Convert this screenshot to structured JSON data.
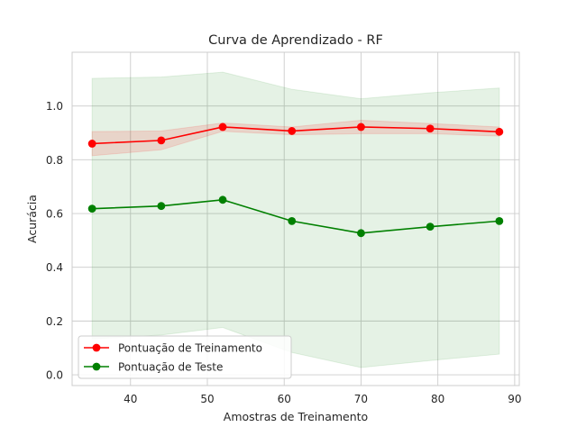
{
  "chart_data": {
    "type": "line",
    "title": "Curva de Aprendizado - RF",
    "xlabel": "Amostras de Treinamento",
    "ylabel": "Acurácia",
    "x": [
      35,
      44,
      52,
      61,
      70,
      79,
      88
    ],
    "xlim": [
      32.4,
      90.6
    ],
    "ylim": [
      -0.04,
      1.2
    ],
    "xticks": [
      40,
      50,
      60,
      70,
      80,
      90
    ],
    "yticks": [
      0.0,
      0.2,
      0.4,
      0.6,
      0.8,
      1.0
    ],
    "xtick_labels": [
      "40",
      "50",
      "60",
      "70",
      "80",
      "90"
    ],
    "ytick_labels": [
      "0.0",
      "0.2",
      "0.4",
      "0.6",
      "0.8",
      "1.0"
    ],
    "grid": true,
    "legend_position": "lower-left",
    "series": [
      {
        "name": "Pontuação de Treinamento",
        "color": "#ff0000",
        "marker": "circle",
        "values": [
          0.86,
          0.872,
          0.922,
          0.907,
          0.922,
          0.916,
          0.904
        ],
        "band_lower": [
          0.815,
          0.837,
          0.906,
          0.893,
          0.897,
          0.897,
          0.888
        ],
        "band_upper": [
          0.905,
          0.907,
          0.937,
          0.922,
          0.947,
          0.935,
          0.922
        ],
        "band_color": "#ff0000",
        "band_opacity": 0.12
      },
      {
        "name": "Pontuação de Teste",
        "color": "#008000",
        "marker": "circle",
        "values": [
          0.618,
          0.628,
          0.651,
          0.572,
          0.527,
          0.551,
          0.572
        ],
        "band_lower": [
          0.133,
          0.148,
          0.176,
          0.083,
          0.027,
          0.053,
          0.077
        ],
        "band_upper": [
          1.103,
          1.108,
          1.126,
          1.062,
          1.027,
          1.049,
          1.067
        ],
        "band_color": "#008000",
        "band_opacity": 0.1
      }
    ]
  }
}
